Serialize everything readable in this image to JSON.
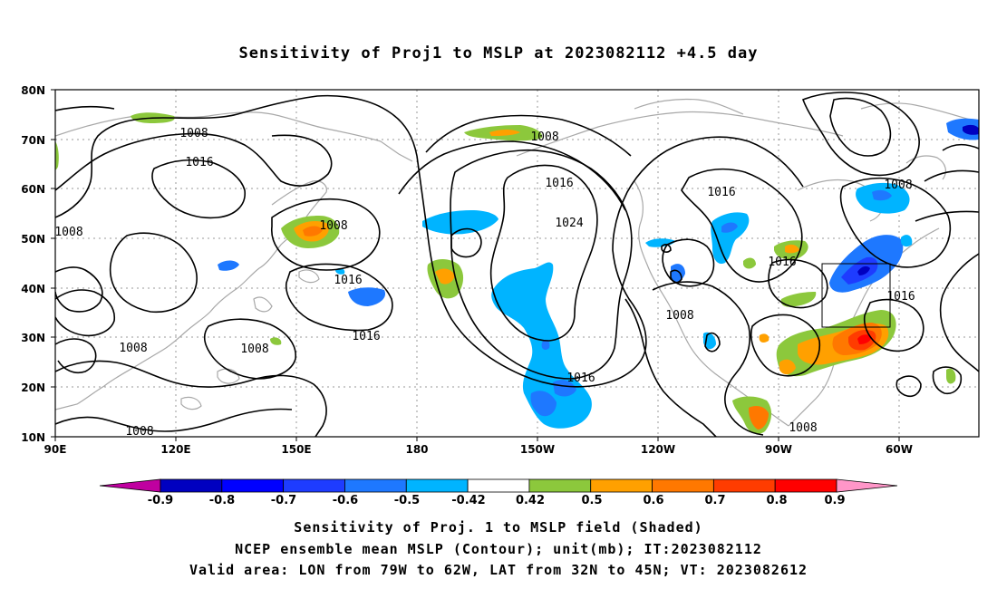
{
  "title": "Sensitivity of Proj1 to MSLP at 2023082112 +4.5 day",
  "lat_labels": [
    "80N",
    "70N",
    "60N",
    "50N",
    "40N",
    "30N",
    "20N",
    "10N"
  ],
  "lon_labels": [
    "90E",
    "120E",
    "150E",
    "180",
    "150W",
    "120W",
    "90W",
    "60W"
  ],
  "contour_labels": [
    "1008",
    "1016",
    "1008",
    "1008",
    "1016",
    "1008",
    "1008",
    "1016",
    "1008",
    "1008",
    "1016",
    "1024",
    "1016",
    "1016",
    "1008",
    "1016",
    "1008",
    "1016",
    "1008"
  ],
  "colorbar": {
    "labels": [
      "-0.9",
      "-0.8",
      "-0.7",
      "-0.6",
      "-0.5",
      "-0.42",
      "0.42",
      "0.5",
      "0.6",
      "0.7",
      "0.8",
      "0.9"
    ],
    "colors": [
      "#c000a0",
      "#0000c0",
      "#0000ff",
      "#1e3cff",
      "#1e78ff",
      "#00b4ff",
      "#ffffff",
      "#8cc83c",
      "#ffa000",
      "#ff7800",
      "#ff3c00",
      "#ff0000",
      "#ff96c8"
    ]
  },
  "captions": [
    "Sensitivity of Proj. 1 to MSLP field (Shaded)",
    "NCEP ensemble mean MSLP (Contour); unit(mb); IT:2023082112",
    "Valid area: LON from 79W to 62W, LAT from 32N to 45N; VT: 2023082612"
  ]
}
